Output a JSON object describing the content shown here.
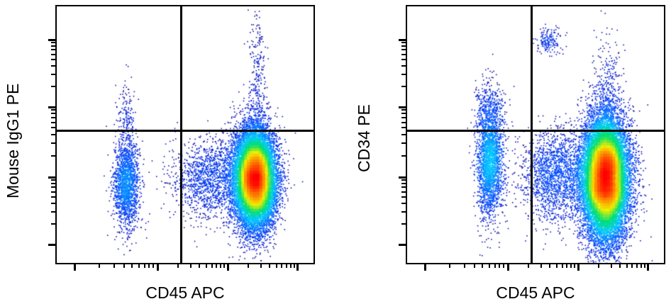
{
  "chart_data": [
    {
      "type": "scatter",
      "subtype": "flow-cytometry-density-dot-plot",
      "title": "",
      "xlabel": "CD45 APC",
      "ylabel": "Mouse IgG1 PE",
      "x_scale": "log (biexponential)",
      "y_scale": "log (biexponential)",
      "tick_labels_shown": false,
      "quadrant_gate": {
        "x_line_frac": 0.48,
        "y_line_frac": 0.48
      },
      "colormap": [
        "#0000c0",
        "#0050ff",
        "#00c8ff",
        "#00e070",
        "#f0f000",
        "#ff8000",
        "#ff0000"
      ],
      "populations": [
        {
          "name": "CD45-dim/low cluster",
          "cx": 0.27,
          "cy": 0.31,
          "sx": 0.025,
          "sy": 0.085,
          "n": 1700,
          "density_peak": "blue"
        },
        {
          "name": "CD45-dim upper tail",
          "cx": 0.27,
          "cy": 0.57,
          "sx": 0.018,
          "sy": 0.07,
          "n": 160,
          "density_peak": "blue"
        },
        {
          "name": "CD45+ smear",
          "cx": 0.6,
          "cy": 0.33,
          "sx": 0.08,
          "sy": 0.075,
          "n": 1500,
          "density_peak": "blue"
        },
        {
          "name": "CD45 bright lymphocytes",
          "cx": 0.77,
          "cy": 0.33,
          "sx": 0.04,
          "sy": 0.095,
          "n": 16000,
          "density_peak": "red"
        },
        {
          "name": "CD45 bright upper streak",
          "cx": 0.78,
          "cy": 0.7,
          "sx": 0.018,
          "sy": 0.14,
          "n": 280,
          "density_peak": "blue"
        }
      ]
    },
    {
      "type": "scatter",
      "subtype": "flow-cytometry-density-dot-plot",
      "title": "",
      "xlabel": "CD45 APC",
      "ylabel": "CD34 PE",
      "x_scale": "log (biexponential)",
      "y_scale": "log (biexponential)",
      "tick_labels_shown": false,
      "quadrant_gate": {
        "x_line_frac": 0.48,
        "y_line_frac": 0.48
      },
      "colormap": [
        "#0000c0",
        "#0050ff",
        "#00c8ff",
        "#00e070",
        "#f0f000",
        "#ff8000",
        "#ff0000"
      ],
      "populations": [
        {
          "name": "CD45-dim cluster",
          "cx": 0.32,
          "cy": 0.4,
          "sx": 0.025,
          "sy": 0.11,
          "n": 2400,
          "density_peak": "blue"
        },
        {
          "name": "CD45-dim CD34+ tail",
          "cx": 0.32,
          "cy": 0.6,
          "sx": 0.03,
          "sy": 0.06,
          "n": 300,
          "density_peak": "blue"
        },
        {
          "name": "CD34+ CD45 dim blasts",
          "cx": 0.55,
          "cy": 0.87,
          "sx": 0.025,
          "sy": 0.025,
          "n": 160,
          "density_peak": "blue"
        },
        {
          "name": "CD45+ smear",
          "cx": 0.58,
          "cy": 0.34,
          "sx": 0.07,
          "sy": 0.09,
          "n": 1800,
          "density_peak": "blue"
        },
        {
          "name": "CD45 bright lymphocytes",
          "cx": 0.77,
          "cy": 0.33,
          "sx": 0.045,
          "sy": 0.12,
          "n": 18000,
          "density_peak": "red"
        },
        {
          "name": "CD45 bright upper streak",
          "cx": 0.78,
          "cy": 0.63,
          "sx": 0.03,
          "sy": 0.13,
          "n": 350,
          "density_peak": "blue"
        }
      ]
    }
  ],
  "panels": [
    {
      "xlabel": "CD45 APC",
      "ylabel": "Mouse IgG1 PE"
    },
    {
      "xlabel": "CD45 APC",
      "ylabel": "CD34 PE"
    }
  ]
}
